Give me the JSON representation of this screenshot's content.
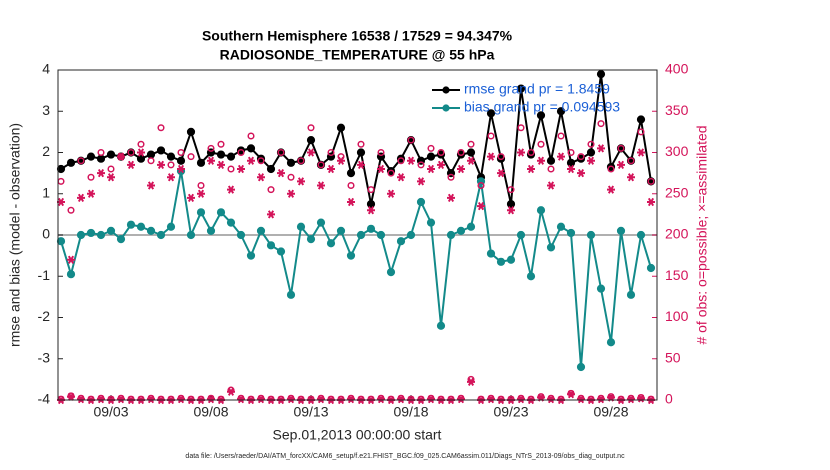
{
  "chart_data": {
    "type": "line",
    "title": "Southern Hemisphere 16538 / 17529 = 94.347%",
    "subtitle": "RADIOSONDE_TEMPERATURE @ 55 hPa",
    "xlabel": "Sep.01,2013 00:00:00 start",
    "ylabel": "rmse and bias (model - observation)",
    "y2label": "# of obs: o=possible; ×=assimilated",
    "footnote": "data file: /Users/raeder/DAI/ATM_forcXX/CAM6_setup/f.e21.FHIST_BGC.f09_025.CAM6assim.011/Diags_NTrS_2013-09/obs_diag_output.nc",
    "xlim": [
      0.35,
      30.3
    ],
    "xticks": [
      {
        "value": 3,
        "label": "09/03"
      },
      {
        "value": 8,
        "label": "09/08"
      },
      {
        "value": 13,
        "label": "09/13"
      },
      {
        "value": 18,
        "label": "09/18"
      },
      {
        "value": 23,
        "label": "09/23"
      },
      {
        "value": 28,
        "label": "09/28"
      }
    ],
    "ylim": [
      -4,
      4
    ],
    "yticks": [
      -4,
      -3,
      -2,
      -1,
      0,
      1,
      2,
      3,
      4
    ],
    "y2lim": [
      0,
      400
    ],
    "y2ticks": [
      0,
      50,
      100,
      150,
      200,
      250,
      300,
      350,
      400
    ],
    "hline": 0,
    "legend": "upper right",
    "x": [
      0.5,
      1,
      1.5,
      2,
      2.5,
      3,
      3.5,
      4,
      4.5,
      5,
      5.5,
      6,
      6.5,
      7,
      7.5,
      8,
      8.5,
      9,
      9.5,
      10,
      10.5,
      11,
      11.5,
      12,
      12.5,
      13,
      13.5,
      14,
      14.5,
      15,
      15.5,
      16,
      16.5,
      17,
      17.5,
      18,
      18.5,
      19,
      19.5,
      20,
      20.5,
      21,
      21.5,
      22,
      22.5,
      23,
      23.5,
      24,
      24.5,
      25,
      25.5,
      26,
      26.5,
      27,
      27.5,
      28,
      28.5,
      29,
      29.5,
      30
    ],
    "series": [
      {
        "name": "rmse grand pr = 1.8459",
        "color": "#000000",
        "marker": "filled",
        "values": [
          1.6,
          1.75,
          1.8,
          1.9,
          1.85,
          1.95,
          1.9,
          2.0,
          1.85,
          1.95,
          2.05,
          1.9,
          1.8,
          2.5,
          1.75,
          2.0,
          1.95,
          1.9,
          2.05,
          2.1,
          1.85,
          1.6,
          2.0,
          1.75,
          1.8,
          2.3,
          1.7,
          1.9,
          2.6,
          1.5,
          2.0,
          0.75,
          1.9,
          1.55,
          1.85,
          2.3,
          1.8,
          1.9,
          1.95,
          1.5,
          1.95,
          2.0,
          1.4,
          2.95,
          1.85,
          0.75,
          3.55,
          1.95,
          2.9,
          1.8,
          3.0,
          1.75,
          1.85,
          2.0,
          3.9,
          1.65,
          2.1,
          1.8,
          2.8,
          1.3
        ]
      },
      {
        "name": "bias grand pr = 0.094593",
        "color": "#138a8a",
        "marker": "filled",
        "values": [
          -0.15,
          -0.95,
          0.0,
          0.05,
          0.0,
          0.1,
          -0.1,
          0.25,
          0.2,
          0.1,
          0.0,
          0.2,
          1.55,
          0.0,
          0.55,
          0.1,
          0.55,
          0.3,
          0.0,
          -0.5,
          0.1,
          -0.25,
          -0.4,
          -1.45,
          0.2,
          -0.1,
          0.3,
          -0.2,
          0.1,
          -0.5,
          0.0,
          0.15,
          0.0,
          -0.9,
          -0.15,
          0.0,
          0.8,
          0.3,
          -2.2,
          0.0,
          0.1,
          0.2,
          1.3,
          -0.45,
          -0.65,
          -0.6,
          0.0,
          -1.0,
          0.6,
          -0.3,
          0.2,
          0.05,
          -3.2,
          0.0,
          -1.3,
          -2.6,
          0.1,
          -1.45,
          0.0,
          -0.8
        ]
      },
      {
        "color": "#d4145a",
        "axis": "y2",
        "marker": "open",
        "line": false,
        "values": [
          265,
          230,
          290,
          270,
          300,
          280,
          295,
          300,
          310,
          290,
          330,
          285,
          300,
          295,
          260,
          305,
          310,
          280,
          300,
          320,
          290,
          255,
          300,
          270,
          290,
          330,
          285,
          300,
          295,
          260,
          310,
          255,
          300,
          275,
          290,
          315,
          285,
          305,
          300,
          270,
          300,
          310,
          260,
          320,
          295,
          255,
          330,
          300,
          310,
          280,
          320,
          300,
          295,
          310,
          335,
          280,
          305,
          290,
          325,
          265
        ]
      },
      {
        "color": "#d4145a",
        "axis": "y2",
        "marker": "star",
        "line": false,
        "values": [
          240,
          170,
          245,
          250,
          275,
          270,
          295,
          285,
          300,
          260,
          285,
          270,
          280,
          245,
          250,
          290,
          285,
          255,
          280,
          290,
          270,
          225,
          275,
          250,
          265,
          300,
          260,
          280,
          290,
          240,
          285,
          230,
          280,
          250,
          270,
          290,
          265,
          280,
          285,
          245,
          280,
          290,
          235,
          295,
          275,
          230,
          300,
          280,
          290,
          260,
          295,
          280,
          275,
          290,
          305,
          255,
          285,
          270,
          300,
          240
        ]
      },
      {
        "color": "#d4145a",
        "axis": "y2",
        "marker": "open",
        "line": false,
        "values": [
          1,
          5,
          2,
          1,
          2,
          1,
          2,
          1,
          1,
          2,
          1,
          1,
          2,
          1,
          1,
          2,
          1,
          12,
          2,
          1,
          2,
          1,
          1,
          2,
          1,
          1,
          2,
          1,
          1,
          2,
          1,
          1,
          2,
          1,
          2,
          1,
          1,
          2,
          1,
          1,
          2,
          25,
          1,
          2,
          1,
          1,
          2,
          1,
          4,
          2,
          1,
          8,
          2,
          1,
          2,
          4,
          1,
          2,
          3,
          1
        ]
      },
      {
        "color": "#d4145a",
        "axis": "y2",
        "marker": "star",
        "line": false,
        "values": [
          0,
          4,
          1,
          0,
          1,
          0,
          1,
          0,
          0,
          1,
          0,
          0,
          1,
          0,
          0,
          1,
          0,
          10,
          1,
          0,
          1,
          0,
          0,
          1,
          0,
          0,
          1,
          0,
          0,
          1,
          0,
          0,
          1,
          0,
          1,
          0,
          0,
          1,
          0,
          0,
          1,
          22,
          0,
          1,
          0,
          0,
          1,
          0,
          3,
          1,
          0,
          7,
          1,
          0,
          1,
          3,
          0,
          1,
          2,
          0
        ]
      }
    ]
  }
}
